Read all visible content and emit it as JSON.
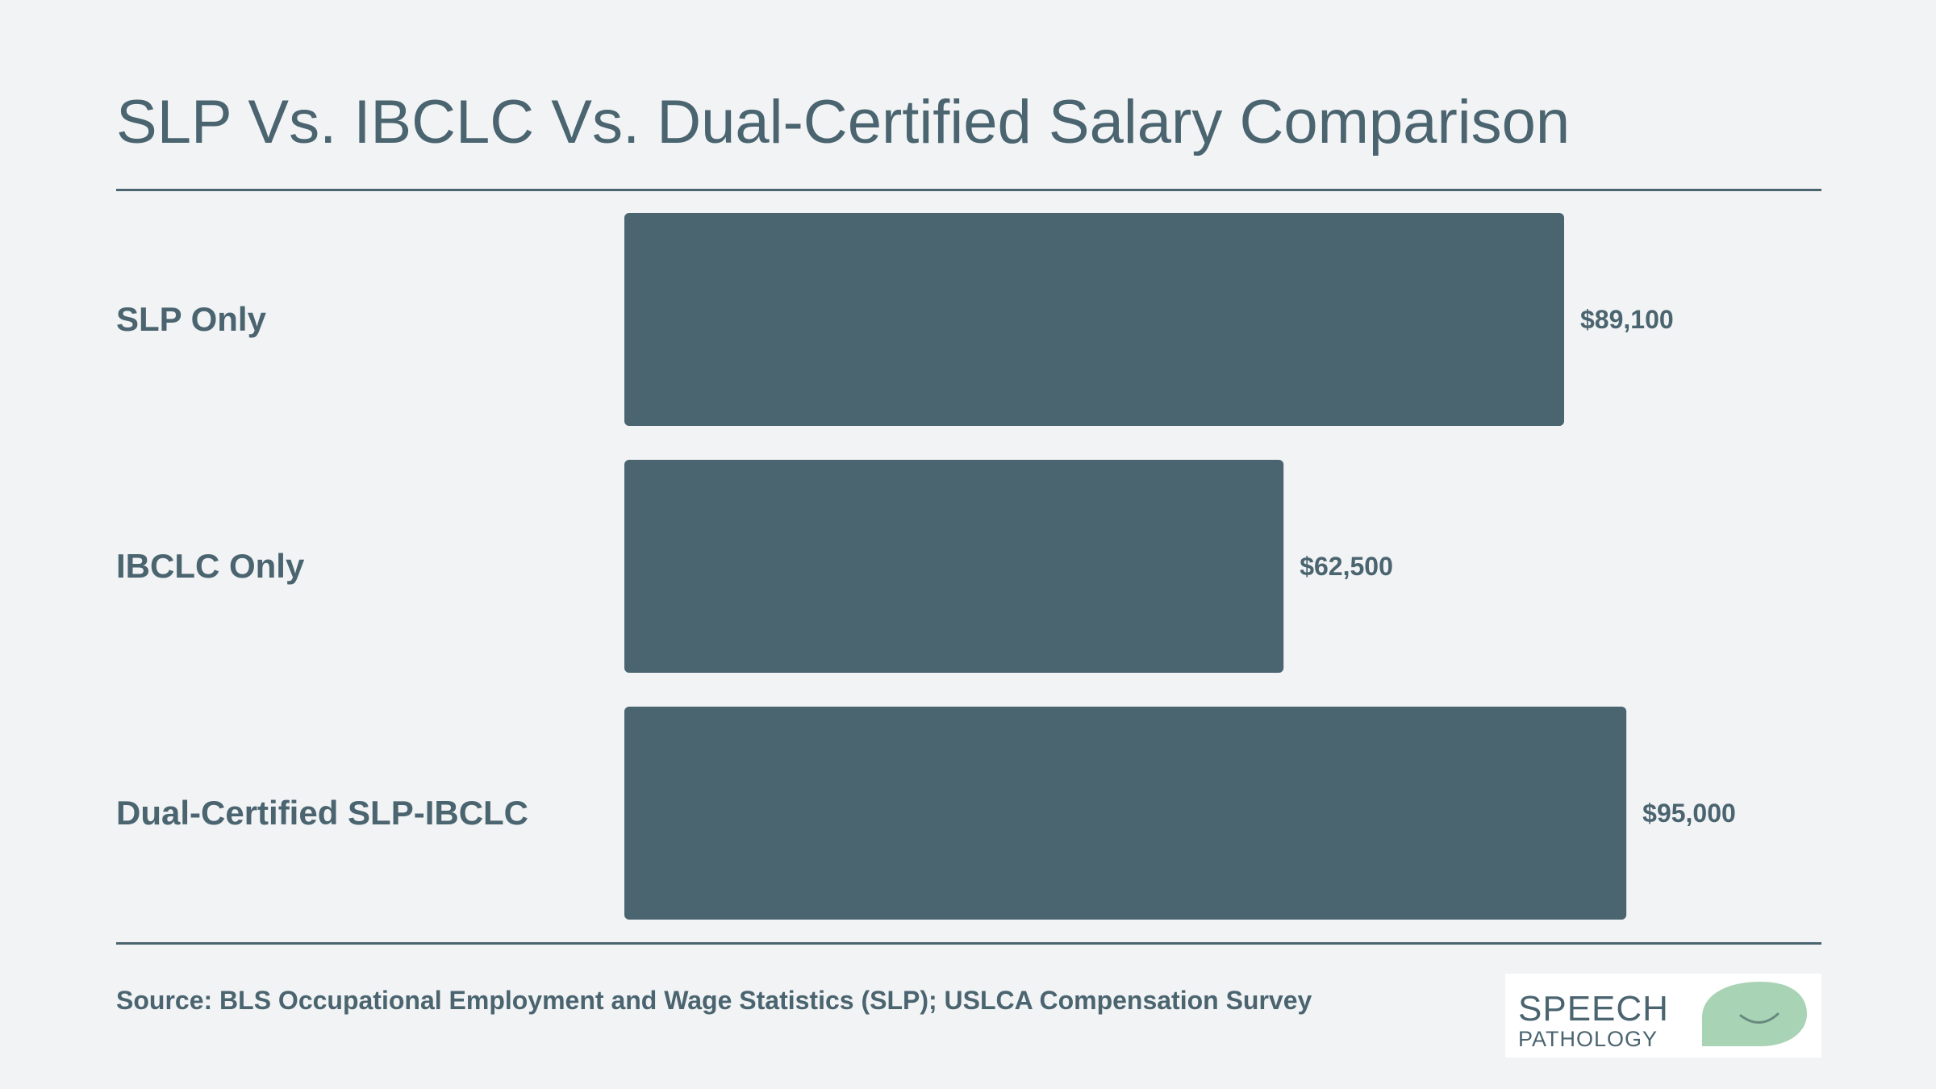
{
  "page": {
    "title": "SLP Vs. IBCLC Vs. Dual-Certified Salary Comparison",
    "source": "Source: BLS Occupational Employment and Wage Statistics (SLP); USLCA Compensation Survey"
  },
  "logo": {
    "line1": "SPEECH",
    "line2": "PATHOLOGY",
    "icon": "speech-bubble-smile-icon"
  },
  "colors": {
    "background": "#f2f3f4",
    "bar": "#4a6470",
    "text": "#4a6470",
    "logo_green": "#a9d3b5"
  },
  "chart_data": {
    "type": "bar",
    "orientation": "horizontal",
    "title": "SLP Vs. IBCLC Vs. Dual-Certified Salary Comparison",
    "categories": [
      "SLP Only",
      "IBCLC Only",
      "Dual-Certified SLP-IBCLC"
    ],
    "values": [
      89100,
      62500,
      95000
    ],
    "value_labels": [
      "$89,100",
      "$62,500",
      "$95,000"
    ],
    "xlabel": "",
    "ylabel": "",
    "grid": false,
    "legend": "none"
  }
}
